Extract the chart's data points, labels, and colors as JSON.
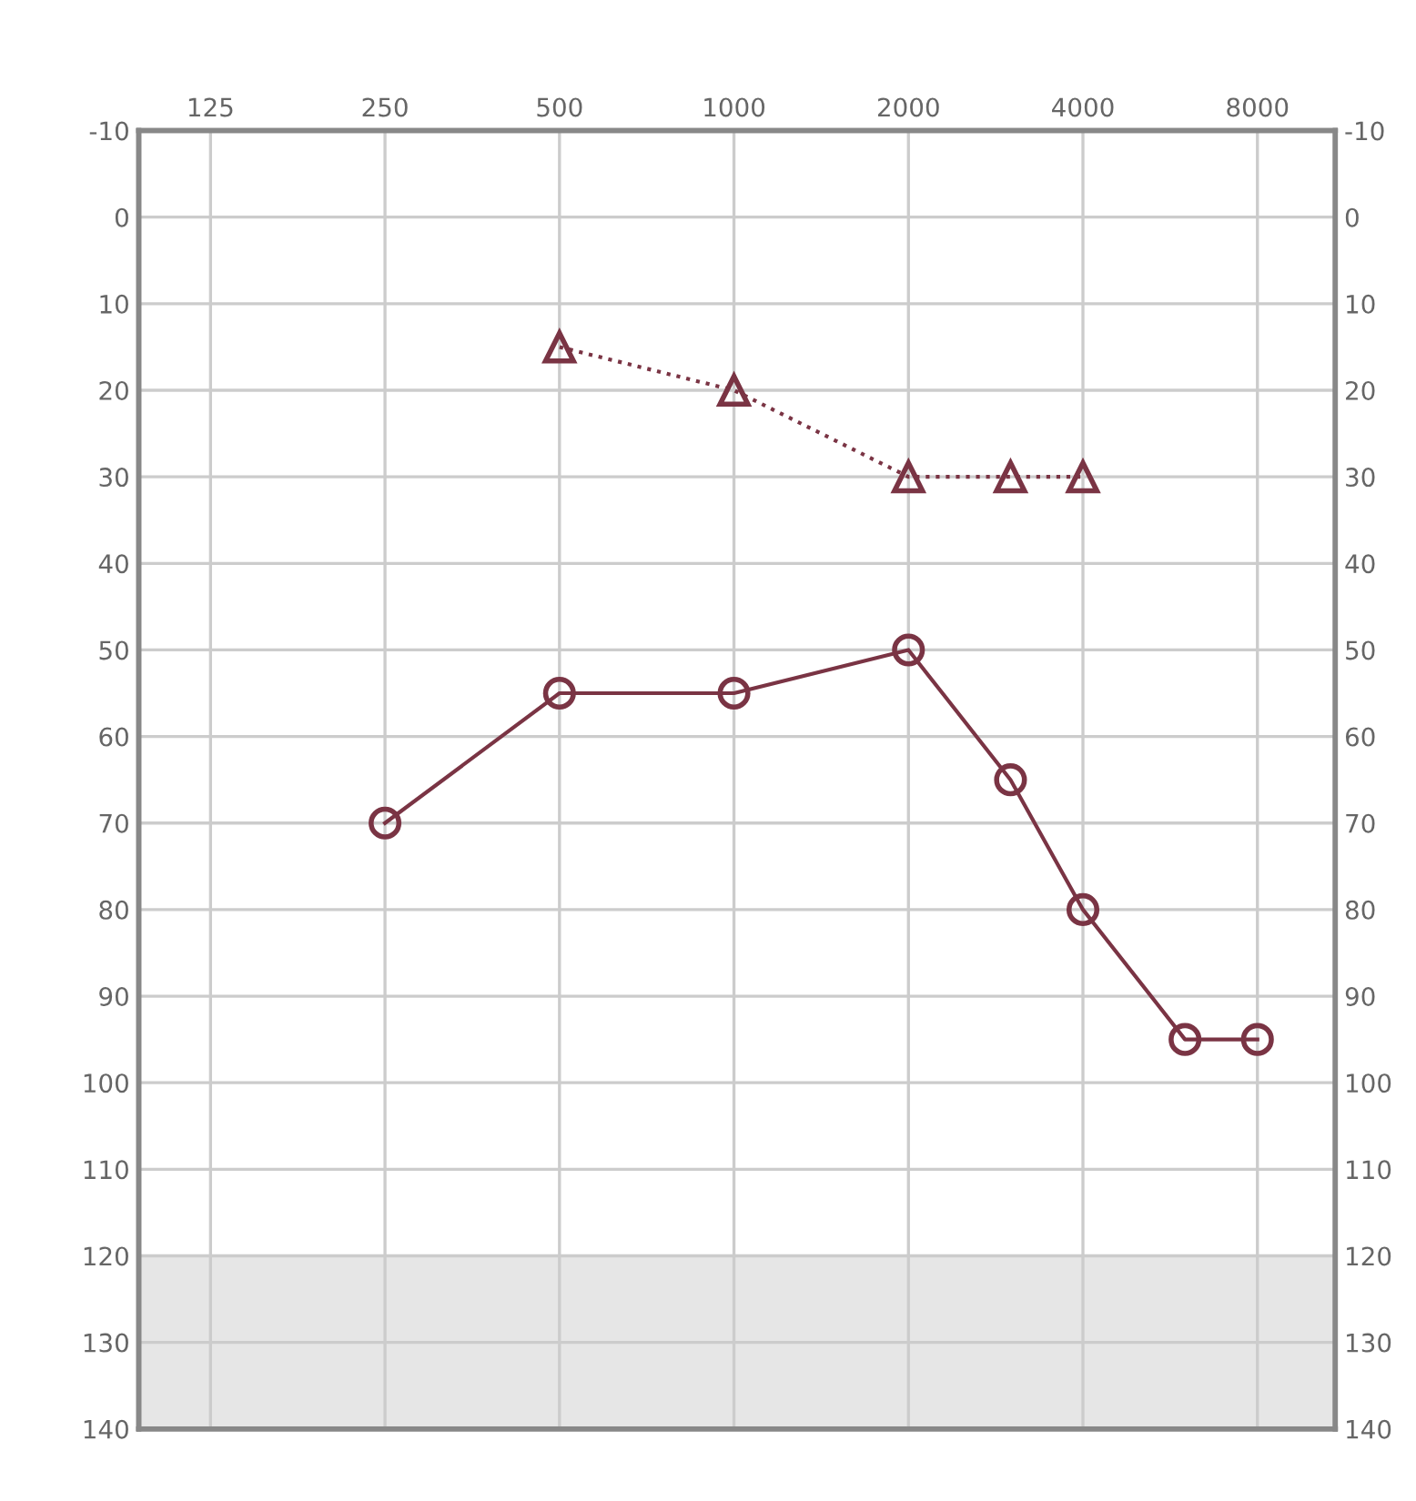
{
  "chart_data": {
    "type": "line",
    "xlim": [
      94,
      10900
    ],
    "xticks": [
      125,
      250,
      500,
      1000,
      2000,
      4000,
      8000
    ],
    "log": "x",
    "ylim": [
      140,
      -10
    ],
    "yticks": [
      -10,
      0,
      10,
      20,
      30,
      40,
      50,
      60,
      70,
      80,
      90,
      100,
      110,
      120,
      130,
      140
    ],
    "y2lim": [
      140,
      -10
    ],
    "y2ticks": [
      -10,
      0,
      10,
      20,
      30,
      40,
      50,
      60,
      70,
      80,
      90,
      100,
      110,
      120,
      130,
      140
    ],
    "grid": true,
    "series": [
      {
        "color": "#7a3444",
        "x": [
          250,
          500,
          1000,
          2000,
          3000,
          4000,
          6000,
          8000
        ],
        "values": [
          70,
          55,
          55,
          50,
          65,
          80,
          95,
          95
        ],
        "marker": "circle",
        "line_style": "solid"
      },
      {
        "color": "#7a3444",
        "x": [
          500,
          1000,
          2000,
          3000,
          4000
        ],
        "values": [
          15,
          20,
          30,
          30,
          30
        ],
        "marker": "triangle",
        "line_style": "dotted"
      }
    ],
    "bands": [
      {
        "axis": "y",
        "from": 120,
        "to": 140,
        "color": "#e6e6e6"
      }
    ]
  }
}
